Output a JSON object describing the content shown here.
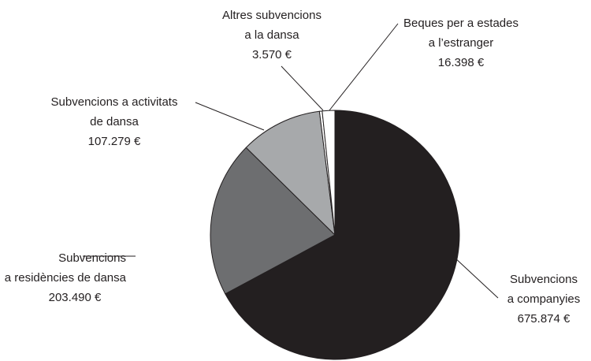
{
  "chart_data": {
    "type": "pie",
    "categories": [
      [
        "Subvencions",
        "a companyies"
      ],
      [
        "Subvencions",
        "a residències de dansa"
      ],
      [
        "Subvencions a activitats",
        "de dansa"
      ],
      [
        "Altres subvencions",
        "a la dansa"
      ],
      [
        "Beques per a estades",
        "a l’estranger"
      ]
    ],
    "values": [
      675874,
      203490,
      107279,
      3570,
      16398
    ],
    "value_labels": [
      "675.874 €",
      "203.490 €",
      "107.279 €",
      "3.570 €",
      "16.398 €"
    ],
    "colors": [
      "#231f20",
      "#6d6e70",
      "#a7a9ab",
      "#ffffff",
      "#ffffff"
    ]
  }
}
